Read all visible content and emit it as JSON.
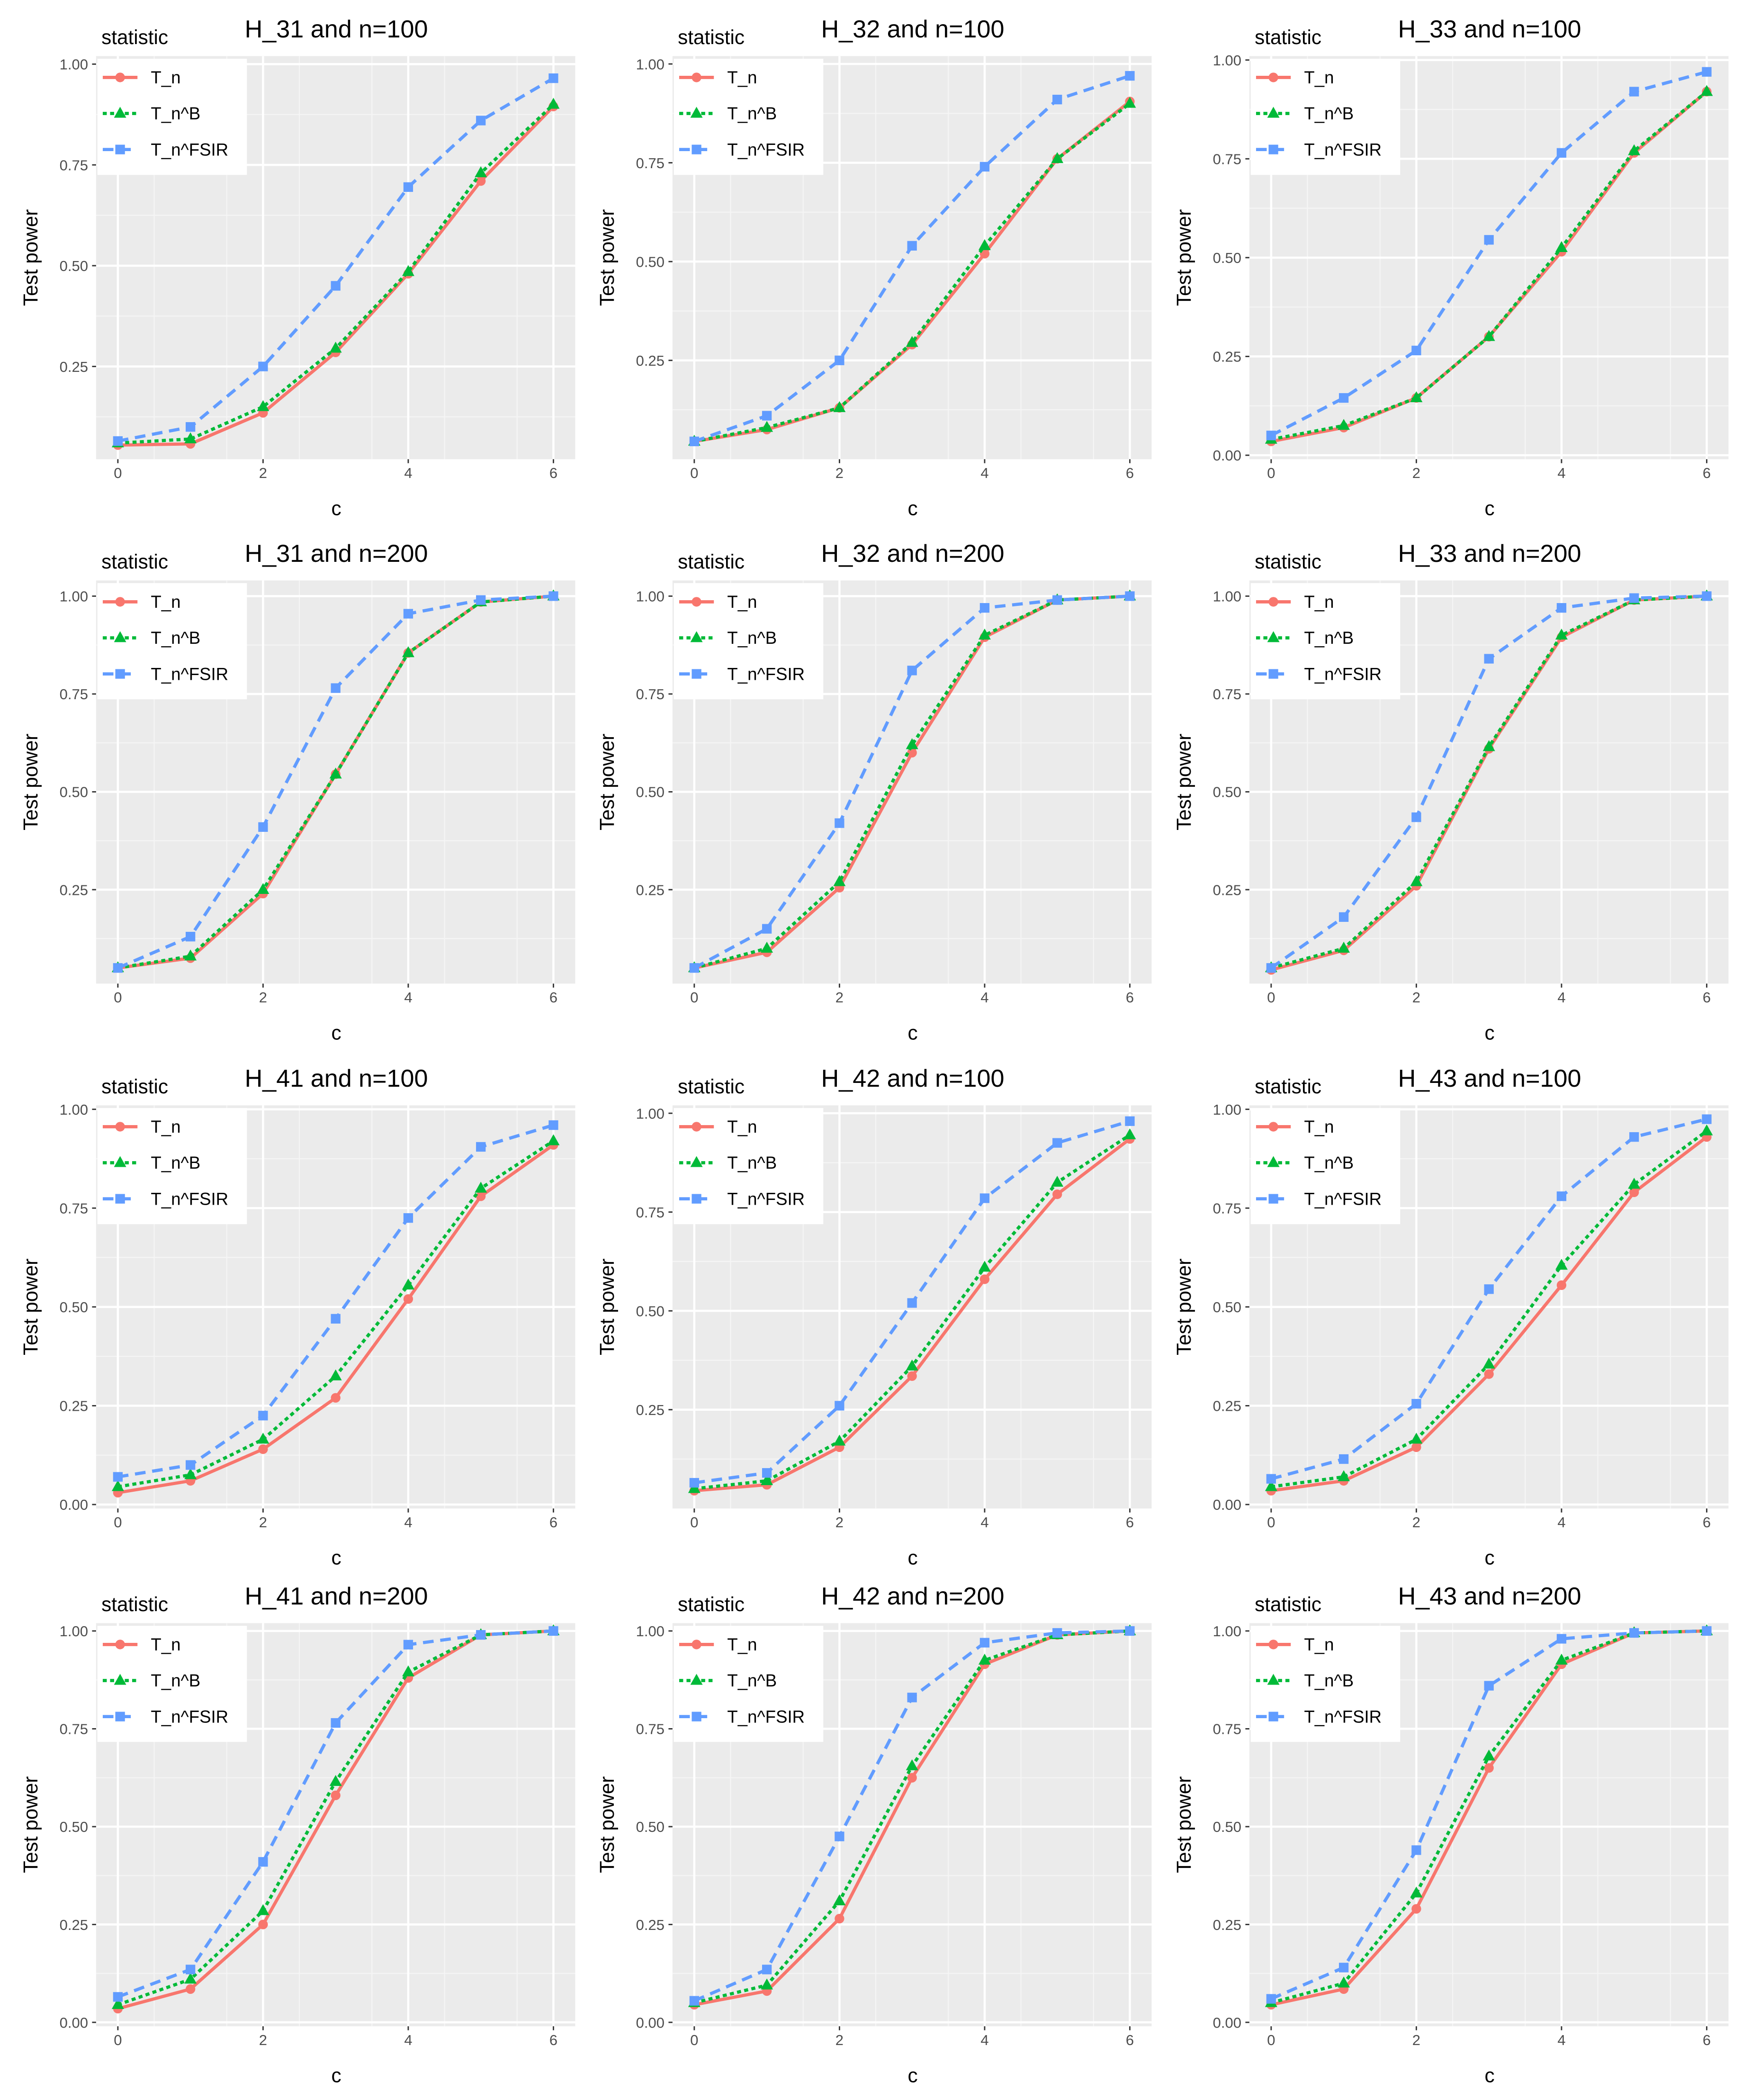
{
  "figure": {
    "colors": {
      "T_n": "#F8766D",
      "T_n^B": "#00BA38",
      "T_n^FSIR": "#619CFF",
      "panel_bg": "#EBEBEB",
      "grid_major": "#FFFFFF",
      "grid_minor": "#F5F5F5",
      "axis_text": "#4D4D4D"
    }
  },
  "chart_data": [
    {
      "type": "line",
      "title": "H_31 and n=100",
      "xlabel": "c",
      "ylabel": "Test power",
      "legend_title": "statistic",
      "x": [
        0,
        1,
        2,
        3,
        4,
        5,
        6
      ],
      "xlim": [
        -0.3,
        6.3
      ],
      "ylim": [
        0.02,
        1.02
      ],
      "yticks": [
        {
          "v": 0.25,
          "label": "0.25"
        },
        {
          "v": 0.5,
          "label": "0.50"
        },
        {
          "v": 0.75,
          "label": "0.75"
        },
        {
          "v": 1.0,
          "label": "1.00"
        }
      ],
      "series": [
        {
          "name": "T_n",
          "values": [
            0.055,
            0.058,
            0.135,
            0.285,
            0.48,
            0.71,
            0.895
          ]
        },
        {
          "name": "T_n^B",
          "values": [
            0.06,
            0.07,
            0.15,
            0.295,
            0.485,
            0.73,
            0.9
          ]
        },
        {
          "name": "T_n^FSIR",
          "values": [
            0.065,
            0.1,
            0.25,
            0.45,
            0.695,
            0.86,
            0.965
          ]
        }
      ]
    },
    {
      "type": "line",
      "title": "H_32 and n=100",
      "xlabel": "c",
      "ylabel": "Test power",
      "legend_title": "statistic",
      "x": [
        0,
        1,
        2,
        3,
        4,
        5,
        6
      ],
      "xlim": [
        -0.3,
        6.3
      ],
      "ylim": [
        0.0,
        1.02
      ],
      "yticks": [
        {
          "v": 0.25,
          "label": "0.25"
        },
        {
          "v": 0.5,
          "label": "0.50"
        },
        {
          "v": 0.75,
          "label": "0.75"
        },
        {
          "v": 1.0,
          "label": "1.00"
        }
      ],
      "series": [
        {
          "name": "T_n",
          "values": [
            0.045,
            0.075,
            0.13,
            0.29,
            0.52,
            0.76,
            0.905
          ]
        },
        {
          "name": "T_n^B",
          "values": [
            0.045,
            0.08,
            0.13,
            0.295,
            0.54,
            0.76,
            0.9
          ]
        },
        {
          "name": "T_n^FSIR",
          "values": [
            0.045,
            0.11,
            0.25,
            0.54,
            0.74,
            0.91,
            0.97
          ]
        }
      ]
    },
    {
      "type": "line",
      "title": "H_33 and n=100",
      "xlabel": "c",
      "ylabel": "Test power",
      "legend_title": "statistic",
      "x": [
        0,
        1,
        2,
        3,
        4,
        5,
        6
      ],
      "xlim": [
        -0.3,
        6.3
      ],
      "ylim": [
        -0.01,
        1.01
      ],
      "yticks": [
        {
          "v": 0.0,
          "label": "0.00"
        },
        {
          "v": 0.25,
          "label": "0.25"
        },
        {
          "v": 0.5,
          "label": "0.50"
        },
        {
          "v": 0.75,
          "label": "0.75"
        },
        {
          "v": 1.0,
          "label": "1.00"
        }
      ],
      "series": [
        {
          "name": "T_n",
          "values": [
            0.035,
            0.07,
            0.145,
            0.3,
            0.515,
            0.765,
            0.92
          ]
        },
        {
          "name": "T_n^B",
          "values": [
            0.04,
            0.075,
            0.145,
            0.3,
            0.525,
            0.77,
            0.92
          ]
        },
        {
          "name": "T_n^FSIR",
          "values": [
            0.05,
            0.145,
            0.265,
            0.545,
            0.765,
            0.92,
            0.97
          ]
        }
      ]
    },
    {
      "type": "line",
      "title": "H_31 and n=200",
      "xlabel": "c",
      "ylabel": "Test power",
      "legend_title": "statistic",
      "x": [
        0,
        1,
        2,
        3,
        4,
        5,
        6
      ],
      "xlim": [
        -0.3,
        6.3
      ],
      "ylim": [
        0.01,
        1.04
      ],
      "yticks": [
        {
          "v": 0.25,
          "label": "0.25"
        },
        {
          "v": 0.5,
          "label": "0.50"
        },
        {
          "v": 0.75,
          "label": "0.75"
        },
        {
          "v": 1.0,
          "label": "1.00"
        }
      ],
      "series": [
        {
          "name": "T_n",
          "values": [
            0.05,
            0.075,
            0.24,
            0.545,
            0.855,
            0.985,
            1.0
          ]
        },
        {
          "name": "T_n^B",
          "values": [
            0.05,
            0.08,
            0.25,
            0.545,
            0.855,
            0.985,
            1.0
          ]
        },
        {
          "name": "T_n^FSIR",
          "values": [
            0.05,
            0.13,
            0.41,
            0.765,
            0.955,
            0.99,
            1.0
          ]
        }
      ]
    },
    {
      "type": "line",
      "title": "H_32 and n=200",
      "xlabel": "c",
      "ylabel": "Test power",
      "legend_title": "statistic",
      "x": [
        0,
        1,
        2,
        3,
        4,
        5,
        6
      ],
      "xlim": [
        -0.3,
        6.3
      ],
      "ylim": [
        0.01,
        1.04
      ],
      "yticks": [
        {
          "v": 0.25,
          "label": "0.25"
        },
        {
          "v": 0.5,
          "label": "0.50"
        },
        {
          "v": 0.75,
          "label": "0.75"
        },
        {
          "v": 1.0,
          "label": "1.00"
        }
      ],
      "series": [
        {
          "name": "T_n",
          "values": [
            0.05,
            0.09,
            0.255,
            0.6,
            0.895,
            0.99,
            1.0
          ]
        },
        {
          "name": "T_n^B",
          "values": [
            0.05,
            0.1,
            0.27,
            0.62,
            0.9,
            0.99,
            1.0
          ]
        },
        {
          "name": "T_n^FSIR",
          "values": [
            0.05,
            0.15,
            0.42,
            0.81,
            0.97,
            0.99,
            1.0
          ]
        }
      ]
    },
    {
      "type": "line",
      "title": "H_33 and n=200",
      "xlabel": "c",
      "ylabel": "Test power",
      "legend_title": "statistic",
      "x": [
        0,
        1,
        2,
        3,
        4,
        5,
        6
      ],
      "xlim": [
        -0.3,
        6.3
      ],
      "ylim": [
        0.01,
        1.04
      ],
      "yticks": [
        {
          "v": 0.25,
          "label": "0.25"
        },
        {
          "v": 0.5,
          "label": "0.50"
        },
        {
          "v": 0.75,
          "label": "0.75"
        },
        {
          "v": 1.0,
          "label": "1.00"
        }
      ],
      "series": [
        {
          "name": "T_n",
          "values": [
            0.045,
            0.095,
            0.26,
            0.61,
            0.895,
            0.99,
            1.0
          ]
        },
        {
          "name": "T_n^B",
          "values": [
            0.05,
            0.1,
            0.27,
            0.615,
            0.9,
            0.99,
            1.0
          ]
        },
        {
          "name": "T_n^FSIR",
          "values": [
            0.05,
            0.18,
            0.435,
            0.84,
            0.97,
            0.995,
            1.0
          ]
        }
      ]
    },
    {
      "type": "line",
      "title": "H_41 and n=100",
      "xlabel": "c",
      "ylabel": "Test power",
      "legend_title": "statistic",
      "x": [
        0,
        1,
        2,
        3,
        4,
        5,
        6
      ],
      "xlim": [
        -0.3,
        6.3
      ],
      "ylim": [
        -0.01,
        1.01
      ],
      "yticks": [
        {
          "v": 0.0,
          "label": "0.00"
        },
        {
          "v": 0.25,
          "label": "0.25"
        },
        {
          "v": 0.5,
          "label": "0.50"
        },
        {
          "v": 0.75,
          "label": "0.75"
        },
        {
          "v": 1.0,
          "label": "1.00"
        }
      ],
      "series": [
        {
          "name": "T_n",
          "values": [
            0.03,
            0.06,
            0.14,
            0.27,
            0.52,
            0.78,
            0.91
          ]
        },
        {
          "name": "T_n^B",
          "values": [
            0.045,
            0.075,
            0.165,
            0.325,
            0.555,
            0.8,
            0.92
          ]
        },
        {
          "name": "T_n^FSIR",
          "values": [
            0.07,
            0.1,
            0.225,
            0.47,
            0.725,
            0.905,
            0.96
          ]
        }
      ]
    },
    {
      "type": "line",
      "title": "H_42 and n=100",
      "xlabel": "c",
      "ylabel": "Test power",
      "legend_title": "statistic",
      "x": [
        0,
        1,
        2,
        3,
        4,
        5,
        6
      ],
      "xlim": [
        -0.3,
        6.3
      ],
      "ylim": [
        0.0,
        1.02
      ],
      "yticks": [
        {
          "v": 0.25,
          "label": "0.25"
        },
        {
          "v": 0.5,
          "label": "0.50"
        },
        {
          "v": 0.75,
          "label": "0.75"
        },
        {
          "v": 1.0,
          "label": "1.00"
        }
      ],
      "series": [
        {
          "name": "T_n",
          "values": [
            0.045,
            0.06,
            0.155,
            0.335,
            0.58,
            0.795,
            0.935
          ]
        },
        {
          "name": "T_n^B",
          "values": [
            0.05,
            0.07,
            0.17,
            0.36,
            0.61,
            0.825,
            0.945
          ]
        },
        {
          "name": "T_n^FSIR",
          "values": [
            0.065,
            0.09,
            0.26,
            0.52,
            0.785,
            0.925,
            0.98
          ]
        }
      ]
    },
    {
      "type": "line",
      "title": "H_43 and n=100",
      "xlabel": "c",
      "ylabel": "Test power",
      "legend_title": "statistic",
      "x": [
        0,
        1,
        2,
        3,
        4,
        5,
        6
      ],
      "xlim": [
        -0.3,
        6.3
      ],
      "ylim": [
        -0.01,
        1.01
      ],
      "yticks": [
        {
          "v": 0.0,
          "label": "0.00"
        },
        {
          "v": 0.25,
          "label": "0.25"
        },
        {
          "v": 0.5,
          "label": "0.50"
        },
        {
          "v": 0.75,
          "label": "0.75"
        },
        {
          "v": 1.0,
          "label": "1.00"
        }
      ],
      "series": [
        {
          "name": "T_n",
          "values": [
            0.035,
            0.06,
            0.145,
            0.33,
            0.555,
            0.79,
            0.93
          ]
        },
        {
          "name": "T_n^B",
          "values": [
            0.045,
            0.07,
            0.165,
            0.355,
            0.605,
            0.81,
            0.945
          ]
        },
        {
          "name": "T_n^FSIR",
          "values": [
            0.065,
            0.115,
            0.255,
            0.545,
            0.78,
            0.93,
            0.975
          ]
        }
      ]
    },
    {
      "type": "line",
      "title": "H_41 and n=200",
      "xlabel": "c",
      "ylabel": "Test power",
      "legend_title": "statistic",
      "x": [
        0,
        1,
        2,
        3,
        4,
        5,
        6
      ],
      "xlim": [
        -0.3,
        6.3
      ],
      "ylim": [
        -0.01,
        1.02
      ],
      "yticks": [
        {
          "v": 0.0,
          "label": "0.00"
        },
        {
          "v": 0.25,
          "label": "0.25"
        },
        {
          "v": 0.5,
          "label": "0.50"
        },
        {
          "v": 0.75,
          "label": "0.75"
        },
        {
          "v": 1.0,
          "label": "1.00"
        }
      ],
      "series": [
        {
          "name": "T_n",
          "values": [
            0.035,
            0.085,
            0.25,
            0.58,
            0.88,
            0.99,
            1.0
          ]
        },
        {
          "name": "T_n^B",
          "values": [
            0.045,
            0.11,
            0.285,
            0.615,
            0.895,
            0.99,
            1.0
          ]
        },
        {
          "name": "T_n^FSIR",
          "values": [
            0.065,
            0.135,
            0.41,
            0.765,
            0.965,
            0.99,
            1.0
          ]
        }
      ]
    },
    {
      "type": "line",
      "title": "H_42 and n=200",
      "xlabel": "c",
      "ylabel": "Test power",
      "legend_title": "statistic",
      "x": [
        0,
        1,
        2,
        3,
        4,
        5,
        6
      ],
      "xlim": [
        -0.3,
        6.3
      ],
      "ylim": [
        -0.01,
        1.02
      ],
      "yticks": [
        {
          "v": 0.0,
          "label": "0.00"
        },
        {
          "v": 0.25,
          "label": "0.25"
        },
        {
          "v": 0.5,
          "label": "0.50"
        },
        {
          "v": 0.75,
          "label": "0.75"
        },
        {
          "v": 1.0,
          "label": "1.00"
        }
      ],
      "series": [
        {
          "name": "T_n",
          "values": [
            0.045,
            0.08,
            0.265,
            0.625,
            0.915,
            0.99,
            1.0
          ]
        },
        {
          "name": "T_n^B",
          "values": [
            0.05,
            0.095,
            0.31,
            0.655,
            0.925,
            0.99,
            1.0
          ]
        },
        {
          "name": "T_n^FSIR",
          "values": [
            0.055,
            0.135,
            0.475,
            0.83,
            0.97,
            0.995,
            1.0
          ]
        }
      ]
    },
    {
      "type": "line",
      "title": "H_43 and n=200",
      "xlabel": "c",
      "ylabel": "Test power",
      "legend_title": "statistic",
      "x": [
        0,
        1,
        2,
        3,
        4,
        5,
        6
      ],
      "xlim": [
        -0.3,
        6.3
      ],
      "ylim": [
        -0.01,
        1.02
      ],
      "yticks": [
        {
          "v": 0.0,
          "label": "0.00"
        },
        {
          "v": 0.25,
          "label": "0.25"
        },
        {
          "v": 0.5,
          "label": "0.50"
        },
        {
          "v": 0.75,
          "label": "0.75"
        },
        {
          "v": 1.0,
          "label": "1.00"
        }
      ],
      "series": [
        {
          "name": "T_n",
          "values": [
            0.045,
            0.085,
            0.29,
            0.65,
            0.915,
            0.995,
            1.0
          ]
        },
        {
          "name": "T_n^B",
          "values": [
            0.05,
            0.1,
            0.33,
            0.68,
            0.925,
            0.995,
            1.0
          ]
        },
        {
          "name": "T_n^FSIR",
          "values": [
            0.06,
            0.14,
            0.44,
            0.86,
            0.98,
            0.995,
            1.0
          ]
        }
      ]
    }
  ]
}
